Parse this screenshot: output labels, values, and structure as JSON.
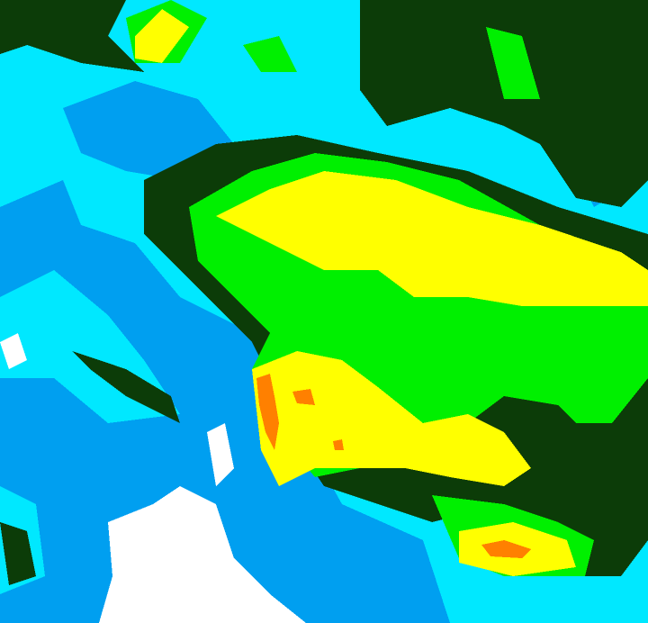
{
  "map": {
    "type": "weather-radar-reflectivity",
    "colors": {
      "deep_blue": "#009ff0",
      "cyan": "#00e8ff",
      "dark_green": "#0c3c08",
      "green": "#00f000",
      "yellow": "#ffff00",
      "orange": "#ff8000",
      "white": "#ffffff"
    }
  }
}
